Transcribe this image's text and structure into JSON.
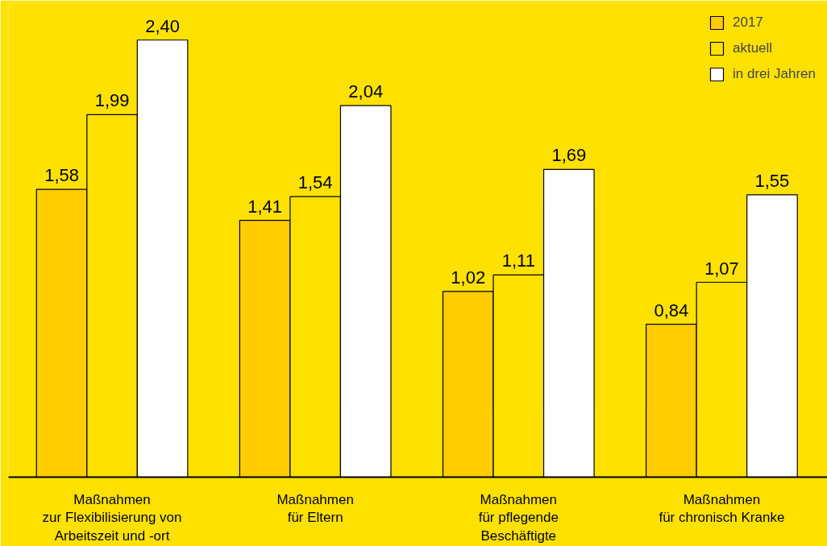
{
  "chart_data": {
    "type": "bar",
    "categories": [
      "Maßnahmen\nzur Flexibilisierung von\nArbeitszeit und -ort",
      "Maßnahmen\nfür Eltern",
      "Maßnahmen\nfür pflegende\nBeschäftigte",
      "Maßnahmen\nfür chronisch Kranke"
    ],
    "series": [
      {
        "name": "2017",
        "color": "#ffcc00",
        "values": [
          1.58,
          1.41,
          1.02,
          0.84
        ],
        "value_labels": [
          "1,58",
          "1,41",
          "1,02",
          "0,84"
        ]
      },
      {
        "name": "aktuell",
        "color": "#ffe100",
        "values": [
          1.99,
          1.54,
          1.11,
          1.07
        ],
        "value_labels": [
          "1,99",
          "1,54",
          "1,11",
          "1,07"
        ]
      },
      {
        "name": "in drei Jahren",
        "color": "#ffffff",
        "values": [
          2.4,
          2.04,
          1.69,
          1.55
        ],
        "value_labels": [
          "2,40",
          "2,04",
          "1,69",
          "1,55"
        ]
      }
    ],
    "ylim": [
      0,
      2.6
    ],
    "grid": false,
    "legend": "top right",
    "tick_labels": "x"
  }
}
